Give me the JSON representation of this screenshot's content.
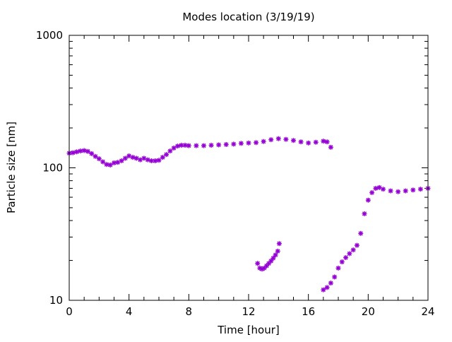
{
  "chart_data": {
    "type": "scatter",
    "title": "Modes location (3/19/19)",
    "xlabel": "Time [hour]",
    "ylabel": "Particle size [nm]",
    "xlim": [
      0,
      24
    ],
    "ylim": [
      10,
      1000
    ],
    "yscale": "log",
    "grid": false,
    "legend": "none",
    "x_ticks": [
      0,
      4,
      8,
      12,
      16,
      20,
      24
    ],
    "x_tick_labels": [
      "0",
      "4",
      "8",
      "12",
      "16",
      "20",
      "24"
    ],
    "y_ticks": [
      10,
      100,
      1000
    ],
    "y_tick_labels": [
      "10",
      "100",
      "1000"
    ],
    "marker": "asterisk",
    "color": "#9400d3",
    "series": [
      {
        "points": [
          [
            0.0,
            129
          ],
          [
            0.25,
            130
          ],
          [
            0.5,
            132
          ],
          [
            0.75,
            134
          ],
          [
            1.0,
            135
          ],
          [
            1.25,
            133
          ],
          [
            1.5,
            128
          ],
          [
            1.75,
            122
          ],
          [
            2.0,
            117
          ],
          [
            2.25,
            111
          ],
          [
            2.5,
            106
          ],
          [
            2.75,
            105
          ],
          [
            3.0,
            109
          ],
          [
            3.25,
            110
          ],
          [
            3.5,
            113
          ],
          [
            3.75,
            118
          ],
          [
            4.0,
            123
          ],
          [
            4.25,
            120
          ],
          [
            4.5,
            118
          ],
          [
            4.75,
            115
          ],
          [
            5.0,
            118
          ],
          [
            5.25,
            115
          ],
          [
            5.5,
            113
          ],
          [
            5.75,
            113
          ],
          [
            6.0,
            114
          ],
          [
            6.25,
            120
          ],
          [
            6.5,
            126
          ],
          [
            6.75,
            134
          ],
          [
            7.0,
            141
          ],
          [
            7.25,
            146
          ],
          [
            7.5,
            148
          ],
          [
            7.75,
            148
          ],
          [
            8.0,
            147
          ],
          [
            8.5,
            147
          ],
          [
            9.0,
            147
          ],
          [
            9.5,
            148
          ],
          [
            10.0,
            149
          ],
          [
            10.5,
            150
          ],
          [
            11.0,
            151
          ],
          [
            11.5,
            153
          ],
          [
            12.0,
            154
          ],
          [
            12.5,
            155
          ],
          [
            13.0,
            158
          ],
          [
            13.5,
            163
          ],
          [
            14.0,
            166
          ],
          [
            14.5,
            164
          ],
          [
            15.0,
            161
          ],
          [
            15.5,
            157
          ],
          [
            16.0,
            154
          ],
          [
            16.5,
            156
          ],
          [
            17.0,
            159
          ],
          [
            17.25,
            157
          ],
          [
            17.5,
            143
          ]
        ]
      },
      {
        "points": [
          [
            12.6,
            19
          ],
          [
            12.75,
            17.5
          ],
          [
            12.9,
            17.2
          ],
          [
            13.05,
            17.5
          ],
          [
            13.2,
            18.2
          ],
          [
            13.35,
            19.0
          ],
          [
            13.5,
            19.8
          ],
          [
            13.65,
            20.8
          ],
          [
            13.8,
            22.0
          ],
          [
            13.95,
            23.5
          ],
          [
            14.05,
            26.8
          ]
        ]
      },
      {
        "points": [
          [
            17.0,
            12.0
          ],
          [
            17.25,
            12.5
          ],
          [
            17.5,
            13.5
          ],
          [
            17.75,
            15.0
          ],
          [
            18.0,
            17.5
          ],
          [
            18.25,
            19.5
          ],
          [
            18.5,
            21.0
          ],
          [
            18.75,
            22.5
          ],
          [
            19.0,
            24.0
          ],
          [
            19.25,
            26.0
          ],
          [
            19.5,
            32.0
          ],
          [
            19.75,
            45.0
          ],
          [
            20.0,
            57.0
          ],
          [
            20.25,
            65.0
          ],
          [
            20.5,
            70.0
          ],
          [
            20.75,
            71.0
          ],
          [
            21.0,
            69.0
          ],
          [
            21.5,
            67.0
          ],
          [
            22.0,
            66.0
          ],
          [
            22.5,
            67.0
          ],
          [
            23.0,
            68.0
          ],
          [
            23.5,
            69.0
          ],
          [
            24.0,
            70.0
          ]
        ]
      }
    ]
  }
}
